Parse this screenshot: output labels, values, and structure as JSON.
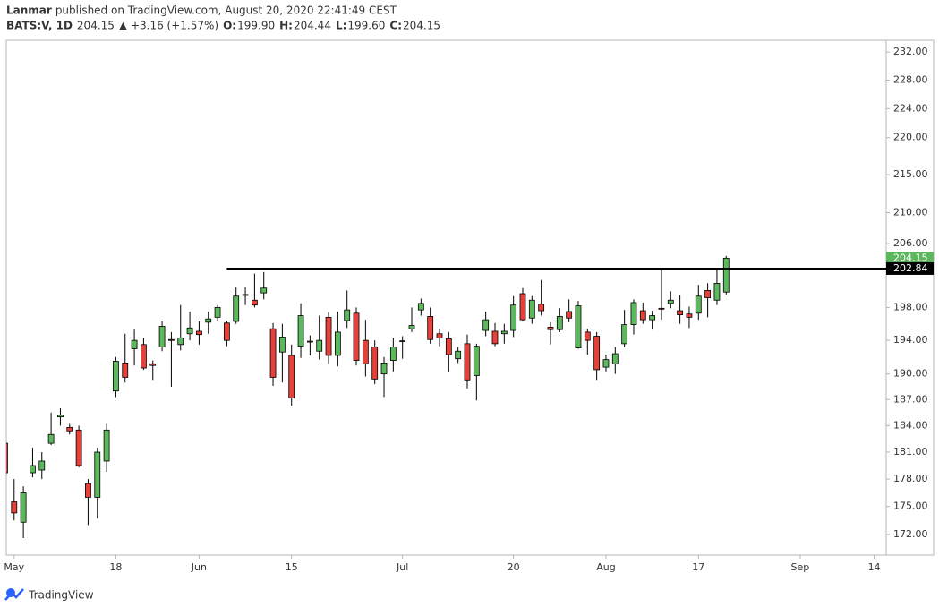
{
  "chart_data": {
    "type": "candlestick",
    "header": {
      "author": "Lanmar",
      "published": "published on TradingView.com, August 20, 2020 22:41:49 CEST",
      "symbol": "BATS:V, 1D",
      "last": "204.15",
      "change": "▲ +3.16 (+1.57%)",
      "ohlc": [
        {
          "label": "O:",
          "value": "199.90"
        },
        {
          "label": "H:",
          "value": "204.44"
        },
        {
          "label": "L:",
          "value": "199.60"
        },
        {
          "label": "C:",
          "value": "204.15"
        }
      ]
    },
    "up_color": "#5cb85c",
    "down_color": "#e5403a",
    "log_scale": true,
    "open": [
      182.0,
      175.5,
      173.3,
      178.7,
      179.0,
      182.0,
      185.0,
      183.8,
      183.5,
      177.5,
      176.0,
      180.0,
      188.0,
      191.3,
      193.0,
      193.5,
      191.2,
      193.2,
      194.1,
      193.5,
      194.8,
      195.1,
      196.2,
      196.8,
      196.1,
      196.3,
      199.5,
      198.9,
      199.8,
      195.4,
      192.6,
      192.2,
      193.3,
      193.9,
      192.7,
      196.8,
      192.2,
      196.4,
      197.3,
      194.0,
      193.2,
      190.0,
      191.6,
      193.9,
      195.4,
      197.7,
      196.9,
      194.8,
      194.2,
      191.8,
      193.6,
      189.8,
      195.2,
      195.1,
      194.8,
      195.2,
      199.7,
      196.7,
      198.4,
      195.6,
      195.3,
      197.5,
      193.1,
      195.0,
      194.5,
      190.8,
      191.2,
      193.6,
      195.9,
      197.6,
      196.5,
      197.9,
      198.5,
      197.6,
      197.2,
      197.3,
      200.1,
      198.9,
      199.9
    ],
    "high": [
      182.3,
      178.0,
      177.2,
      181.5,
      181.0,
      185.5,
      186.0,
      184.3,
      184.0,
      178.0,
      181.5,
      184.3,
      192.0,
      194.8,
      195.3,
      194.3,
      191.6,
      196.3,
      195.0,
      198.3,
      197.5,
      196.3,
      197.5,
      198.3,
      196.4,
      200.5,
      200.5,
      202.2,
      202.4,
      196.1,
      196.0,
      193.5,
      198.5,
      194.6,
      197.0,
      197.4,
      197.5,
      200.1,
      198.0,
      196.5,
      194.0,
      192.0,
      194.3,
      194.5,
      198.0,
      199.1,
      198.0,
      195.4,
      195.0,
      193.2,
      194.7,
      193.6,
      197.5,
      196.1,
      196.0,
      199.4,
      200.4,
      199.4,
      201.4,
      196.2,
      197.9,
      199.0,
      198.8,
      195.4,
      195.0,
      192.3,
      193.2,
      197.7,
      199.0,
      198.6,
      197.6,
      202.8,
      200.0,
      199.5,
      198.1,
      200.8,
      201.0,
      202.7,
      204.44
    ],
    "low": [
      178.5,
      173.5,
      171.6,
      178.2,
      178.0,
      181.8,
      184.0,
      183.0,
      179.3,
      173.0,
      173.7,
      178.8,
      187.3,
      189.0,
      191.0,
      190.5,
      189.3,
      192.7,
      188.5,
      192.8,
      194.0,
      193.5,
      194.8,
      196.4,
      193.3,
      196.0,
      198.3,
      198.0,
      199.0,
      188.6,
      189.0,
      186.3,
      191.9,
      192.2,
      191.7,
      191.2,
      190.9,
      195.5,
      191.0,
      189.7,
      188.8,
      187.3,
      190.3,
      191.8,
      195.0,
      197.0,
      193.6,
      193.3,
      190.2,
      191.3,
      188.3,
      186.9,
      194.5,
      193.3,
      193.6,
      194.4,
      196.3,
      196.0,
      197.0,
      193.5,
      195.0,
      196.2,
      193.0,
      192.3,
      189.3,
      190.3,
      190.0,
      193.2,
      194.7,
      196.0,
      195.3,
      196.5,
      197.9,
      196.0,
      195.5,
      196.5,
      196.8,
      198.3,
      199.6
    ],
    "close": [
      178.7,
      174.3,
      176.5,
      179.5,
      180.0,
      183.0,
      185.2,
      183.4,
      179.5,
      176.0,
      181.0,
      183.5,
      191.5,
      189.6,
      194.0,
      190.7,
      191.0,
      195.7,
      194.0,
      194.3,
      195.5,
      194.7,
      196.6,
      198.0,
      194.0,
      199.4,
      199.6,
      198.3,
      200.4,
      189.6,
      194.4,
      187.2,
      197.0,
      193.8,
      194.0,
      192.2,
      195.0,
      197.7,
      191.6,
      191.2,
      189.4,
      191.3,
      193.2,
      193.95,
      195.8,
      198.5,
      194.1,
      194.3,
      192.3,
      192.7,
      189.3,
      193.3,
      196.5,
      193.6,
      195.1,
      198.3,
      196.5,
      198.9,
      197.6,
      195.3,
      196.9,
      196.7,
      198.2,
      194.0,
      190.5,
      191.7,
      192.4,
      195.9,
      198.6,
      196.5,
      197.0,
      197.8,
      198.9,
      197.1,
      196.8,
      199.4,
      199.2,
      200.99,
      204.15
    ],
    "xlim": [
      0.15,
      95.3
    ],
    "xticks": [
      {
        "value": 1,
        "label": "May"
      },
      {
        "value": 12,
        "label": "18"
      },
      {
        "value": 21,
        "label": "Jun"
      },
      {
        "value": 31,
        "label": "15"
      },
      {
        "value": 43,
        "label": "Jul"
      },
      {
        "value": 55,
        "label": "20"
      },
      {
        "value": 65,
        "label": "Aug"
      },
      {
        "value": 75,
        "label": "17"
      },
      {
        "value": 86,
        "label": "Sep"
      },
      {
        "value": 94,
        "label": "14"
      }
    ],
    "ylim": [
      169.8,
      233.7
    ],
    "yticks": [
      {
        "value": 232,
        "label": "232.00"
      },
      {
        "value": 228,
        "label": "228.00"
      },
      {
        "value": 224,
        "label": "224.00"
      },
      {
        "value": 220,
        "label": "220.00"
      },
      {
        "value": 215,
        "label": "215.00"
      },
      {
        "value": 210,
        "label": "210.00"
      },
      {
        "value": 206,
        "label": "206.00"
      },
      {
        "value": 198,
        "label": "198.00"
      },
      {
        "value": 194,
        "label": "194.00"
      },
      {
        "value": 190,
        "label": "190.00"
      },
      {
        "value": 187,
        "label": "187.00"
      },
      {
        "value": 184,
        "label": "184.00"
      },
      {
        "value": 181,
        "label": "181.00"
      },
      {
        "value": 178,
        "label": "178.00"
      },
      {
        "value": 175,
        "label": "175.00"
      },
      {
        "value": 172,
        "label": "172.00"
      }
    ],
    "last_price": 204.15,
    "horizontal_line": {
      "value": 202.84,
      "x_start": 24,
      "color": "#000000"
    },
    "footer": {
      "brand": "TradingView"
    }
  }
}
